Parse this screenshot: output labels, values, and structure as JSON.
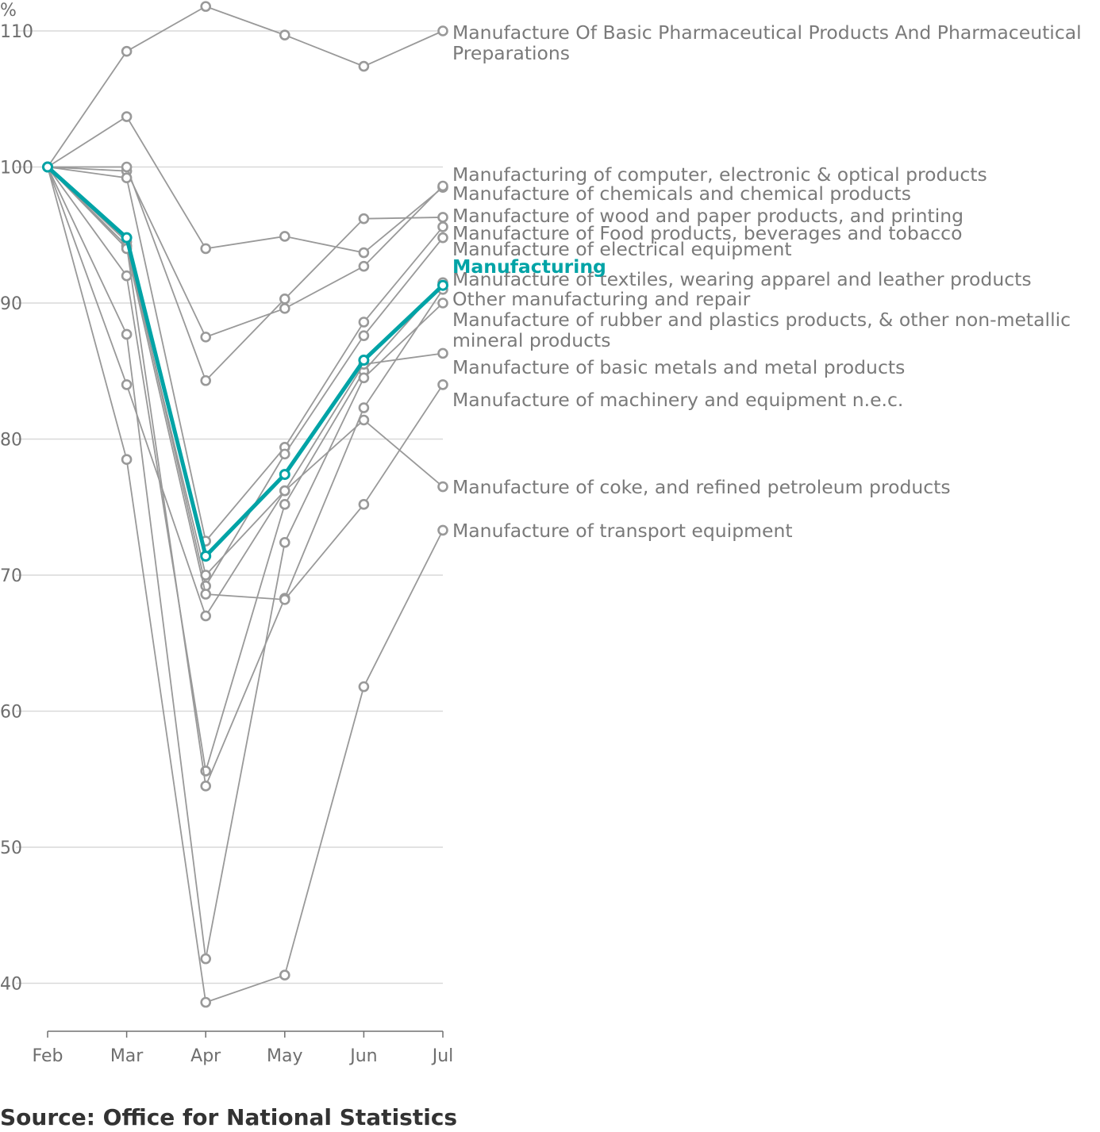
{
  "chart_data": {
    "type": "line",
    "title": "",
    "xlabel": "",
    "ylabel": "%",
    "x": [
      "Feb",
      "Mar",
      "Apr",
      "May",
      "Jun",
      "Jul"
    ],
    "y_ticks": [
      "40",
      "50",
      "60",
      "70",
      "80",
      "90",
      "100",
      "110"
    ],
    "ylim": [
      36,
      112
    ],
    "grid": true,
    "highlight_series": "Manufacturing",
    "highlight_color": "#00a3a6",
    "series_color": "#999999",
    "series": [
      {
        "name": "Manufacture Of Basic Pharmaceutical Products And Pharmaceutical Preparations",
        "label_lines": [
          "Manufacture Of Basic Pharmaceutical Products And Pharmaceutical",
          "Preparations"
        ],
        "values": [
          100,
          108.5,
          111.8,
          109.7,
          107.4,
          110.0
        ]
      },
      {
        "name": "Manufacturing of computer, electronic & optical products",
        "label_lines": [
          "Manufacturing of computer, electronic & optical products"
        ],
        "values": [
          100,
          103.7,
          94.0,
          94.9,
          93.7,
          98.5
        ]
      },
      {
        "name": "Manufacture of chemicals and chemical products",
        "label_lines": [
          "Manufacture of chemicals and chemical products"
        ],
        "values": [
          100,
          99.7,
          87.5,
          89.6,
          92.7,
          98.6
        ]
      },
      {
        "name": "Manufacture of wood and paper products, and printing",
        "label_lines": [
          "Manufacture of wood and paper products, and printing"
        ],
        "values": [
          100,
          100.0,
          84.3,
          90.3,
          96.2,
          96.3
        ]
      },
      {
        "name": "Manufacture of Food products, beverages and tobacco",
        "label_lines": [
          "Manufacture of Food products, beverages and tobacco"
        ],
        "values": [
          100,
          99.2,
          72.5,
          79.4,
          88.6,
          95.6
        ]
      },
      {
        "name": "Manufacture of electrical equipment",
        "label_lines": [
          "Manufacture of electrical equipment"
        ],
        "values": [
          100,
          94.5,
          69.2,
          78.9,
          87.6,
          94.8
        ]
      },
      {
        "name": "Manufacturing",
        "label_lines": [
          "Manufacturing"
        ],
        "values": [
          100,
          94.8,
          71.4,
          77.4,
          85.8,
          91.3
        ]
      },
      {
        "name": "Manufacture of textiles, wearing apparel and leather products",
        "label_lines": [
          "Manufacture of textiles, wearing apparel and leather products"
        ],
        "values": [
          100,
          92.0,
          55.6,
          75.2,
          85.0,
          91.5
        ]
      },
      {
        "name": "Other manufacturing and repair",
        "label_lines": [
          "Other manufacturing and repair"
        ],
        "values": [
          100,
          87.7,
          41.8,
          72.4,
          84.5,
          90.0
        ]
      },
      {
        "name": "Manufacture of rubber and plastics products, & other non-metallic mineral products",
        "label_lines": [
          "Manufacture of rubber and plastics products, & other non-metallic",
          "mineral products"
        ],
        "values": [
          100,
          94.2,
          54.5,
          68.3,
          82.3,
          91.0
        ]
      },
      {
        "name": "Manufacture of basic metals and metal products",
        "label_lines": [
          "Manufacture of basic metals and metal products"
        ],
        "values": [
          100,
          94.2,
          70.0,
          76.2,
          85.5,
          86.3
        ]
      },
      {
        "name": "Manufacture of machinery and equipment n.e.c.",
        "label_lines": [
          "Manufacture of machinery and equipment n.e.c."
        ],
        "values": [
          100,
          94.0,
          68.6,
          68.2,
          75.2,
          84.0
        ]
      },
      {
        "name": "Manufacture of coke, and refined petroleum products",
        "label_lines": [
          "Manufacture of coke, and refined petroleum products"
        ],
        "values": [
          100,
          84.0,
          67.0,
          76.2,
          81.4,
          76.5
        ]
      },
      {
        "name": "Manufacture of transport equipment",
        "label_lines": [
          "Manufacture of transport equipment"
        ],
        "values": [
          100,
          78.5,
          38.6,
          40.6,
          61.8,
          73.3
        ]
      }
    ]
  },
  "source": "Source: Office for National Statistics"
}
